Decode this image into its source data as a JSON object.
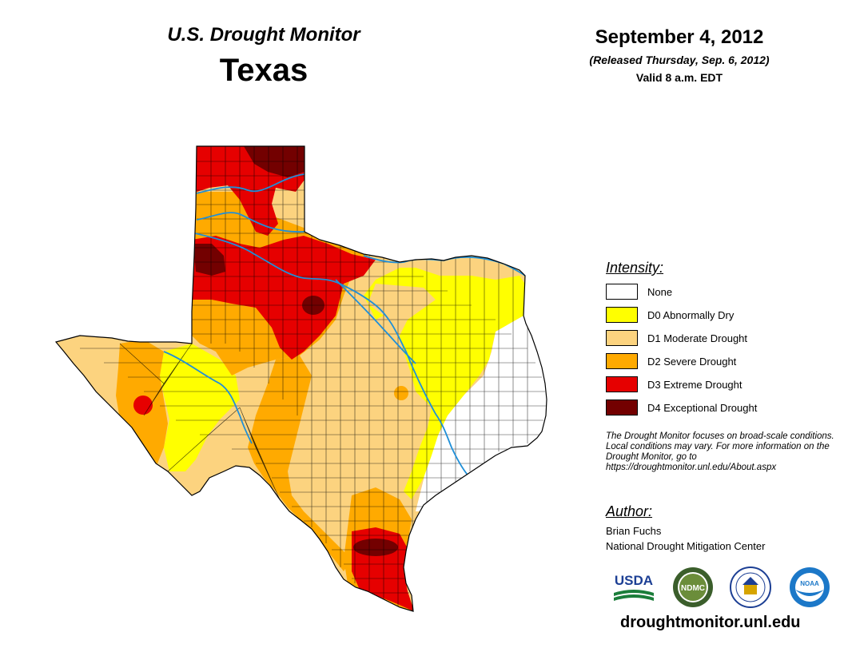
{
  "header": {
    "title": "U.S. Drought Monitor",
    "state": "Texas",
    "date": "September 4, 2012",
    "released": "(Released Thursday, Sep. 6, 2012)",
    "valid": "Valid 8 a.m. EDT"
  },
  "legend": {
    "title": "Intensity:",
    "items": [
      {
        "label": "None",
        "color": "#ffffff"
      },
      {
        "label": "D0 Abnormally Dry",
        "color": "#ffff00"
      },
      {
        "label": "D1 Moderate Drought",
        "color": "#fcd37f"
      },
      {
        "label": "D2 Severe Drought",
        "color": "#ffaa00"
      },
      {
        "label": "D3 Extreme Drought",
        "color": "#e60000"
      },
      {
        "label": "D4 Exceptional Drought",
        "color": "#730000"
      }
    ]
  },
  "note": "The Drought Monitor focuses on broad-scale conditions. Local conditions may vary. For more information on the Drought Monitor, go to https://droughtmonitor.unl.edu/About.aspx",
  "author": {
    "title": "Author:",
    "name": "Brian Fuchs",
    "organization": "National Drought Mitigation Center"
  },
  "logos": [
    {
      "name": "usda-logo",
      "text": "USDA"
    },
    {
      "name": "ndmc-logo",
      "text": "NDMC"
    },
    {
      "name": "commerce-seal-logo",
      "text": ""
    },
    {
      "name": "noaa-logo",
      "text": "NOAA"
    }
  ],
  "website": "droughtmonitor.unl.edu"
}
